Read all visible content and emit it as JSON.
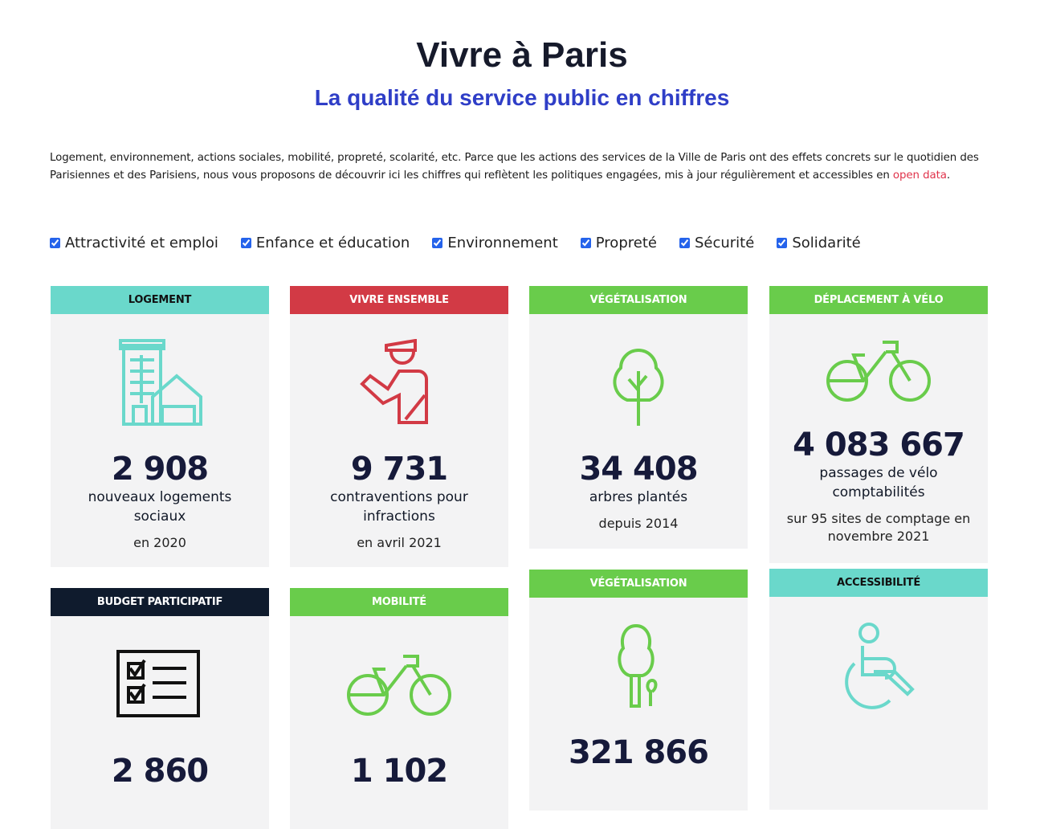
{
  "header": {
    "title": "Vivre à Paris",
    "subtitle": "La qualité du service public en chiffres"
  },
  "intro": {
    "text": "Logement, environnement, actions sociales, mobilité, propreté, scolarité, etc. Parce que les actions des services de la Ville de Paris ont des effets concrets sur le quotidien des Parisiennes et des Parisiens, nous vous proposons de découvrir ici les chiffres qui reflètent les politiques engagées, mis à jour régulièrement et accessibles en ",
    "link": "open data",
    "end": "."
  },
  "filters": [
    {
      "label": "Attractivité et emploi",
      "checked": true
    },
    {
      "label": "Enfance et éducation",
      "checked": true
    },
    {
      "label": "Environnement",
      "checked": true
    },
    {
      "label": "Propreté",
      "checked": true
    },
    {
      "label": "Sécurité",
      "checked": true
    },
    {
      "label": "Solidarité",
      "checked": true
    }
  ],
  "colors": {
    "teal": "#6ad8cb",
    "red": "#d23a45",
    "green": "#69cc4b",
    "navy": "#0f1b2d",
    "link": "#e0324a",
    "title_blue": "#2f3ec7"
  },
  "cards": [
    {
      "category": "LOGEMENT",
      "icon": "building-icon",
      "value": "2 908",
      "label": "nouveaux logements sociaux",
      "sub": "en 2020"
    },
    {
      "category": "VIVRE ENSEMBLE",
      "icon": "police-officer-icon",
      "value": "9 731",
      "label": "contraventions pour infractions",
      "sub": "en avril 2021"
    },
    {
      "category": "VÉGÉTALISATION",
      "icon": "tree-icon",
      "value": "34 408",
      "label": "arbres plantés",
      "sub": "depuis 2014"
    },
    {
      "category": "DÉPLACEMENT À VÉLO",
      "icon": "bicycle-icon",
      "value": "4 083 667",
      "label": "passages de vélo comptabilités",
      "sub": "sur 95 sites de comptage en novembre 2021"
    },
    {
      "category": "BUDGET PARTICIPATIF",
      "icon": "checklist-icon",
      "value": "2 860"
    },
    {
      "category": "MOBILITÉ",
      "icon": "bicycle-icon",
      "value": "1 102"
    },
    {
      "category": "VÉGÉTALISATION",
      "icon": "tree-plant-icon",
      "value": "321 866"
    },
    {
      "category": "ACCESSIBILITÉ",
      "icon": "wheelchair-icon",
      "value": ""
    }
  ]
}
